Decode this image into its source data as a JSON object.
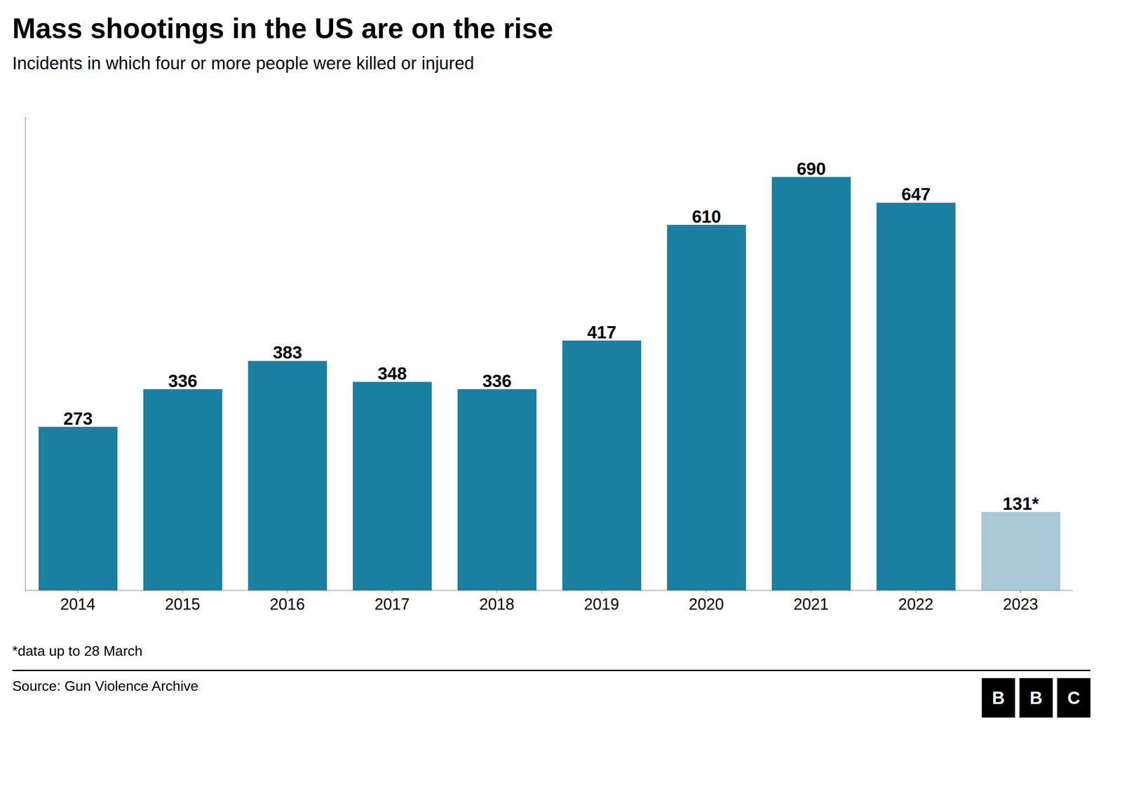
{
  "chart_data": {
    "type": "bar",
    "title": "Mass shootings in the US are on the rise",
    "subtitle": "Incidents in which four or more people were killed or injured",
    "categories": [
      "2014",
      "2015",
      "2016",
      "2017",
      "2018",
      "2019",
      "2020",
      "2021",
      "2022",
      "2023"
    ],
    "values": [
      273,
      336,
      383,
      348,
      336,
      417,
      610,
      690,
      647,
      131
    ],
    "value_labels": [
      "273",
      "336",
      "383",
      "348",
      "336",
      "417",
      "610",
      "690",
      "647",
      "131*"
    ],
    "colors": [
      "#1a7fa0",
      "#1a7fa0",
      "#1a7fa0",
      "#1a7fa0",
      "#1a7fa0",
      "#1a7fa0",
      "#1a7fa0",
      "#1a7fa0",
      "#1a7fa0",
      "#a8c8d8"
    ],
    "ylim": [
      0,
      790
    ],
    "data_labels": true,
    "tick_labels": "x",
    "grid": false,
    "annotations": [
      "*data up to 28 March",
      "Source: Gun Violence Archive",
      "BBC"
    ]
  }
}
